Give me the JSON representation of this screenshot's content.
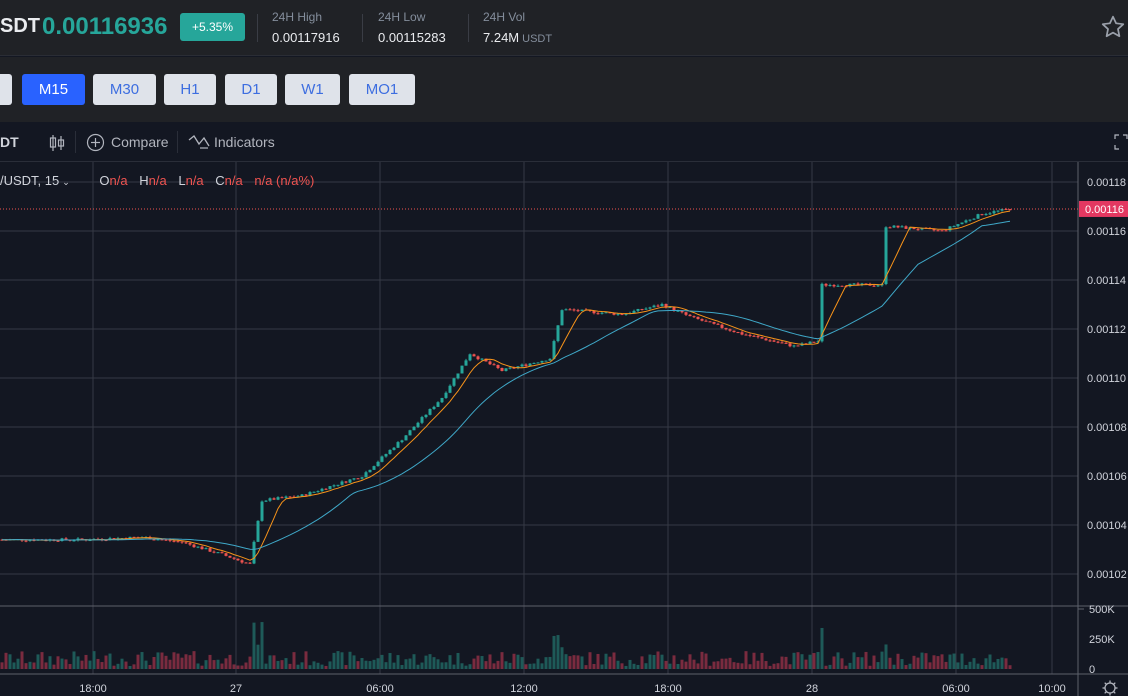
{
  "header": {
    "pair": "SDT",
    "price": "0.00116936",
    "change": "+5.35%",
    "high_label": "24H High",
    "high_value": "0.00117916",
    "low_label": "24H Low",
    "low_value": "0.00115283",
    "vol_label": "24H Vol",
    "vol_value": "7.24M",
    "vol_unit": "USDT"
  },
  "timeframes": [
    {
      "label": "",
      "active": false
    },
    {
      "label": "M15",
      "active": true
    },
    {
      "label": "M30",
      "active": false
    },
    {
      "label": "H1",
      "active": false
    },
    {
      "label": "D1",
      "active": false
    },
    {
      "label": "W1",
      "active": false
    },
    {
      "label": "MO1",
      "active": false
    }
  ],
  "toolbar": {
    "left_text": "DT",
    "compare_label": "Compare",
    "indicators_label": "Indicators"
  },
  "legend": {
    "symbol": "/USDT, 15",
    "o_key": "O",
    "o_val": "n/a",
    "h_key": "H",
    "h_val": "n/a",
    "l_key": "L",
    "l_val": "n/a",
    "c_key": "C",
    "c_val": "n/a",
    "chg_val": "n/a (n/a%)"
  },
  "colors": {
    "up": "#26a69a",
    "down": "#ef5350",
    "ma_fast": "#f7931a",
    "ma_slow": "#3fa8c8",
    "accent": "#2962ff"
  },
  "chart_data": {
    "type": "candlestick",
    "price_ticks": [
      "0.00118",
      "0.00116",
      "0.00114",
      "0.00112",
      "0.00110",
      "0.00108",
      "0.00106",
      "0.00104",
      "0.00102"
    ],
    "last_price_label": "0.00116",
    "volume_ticks": [
      "500K",
      "250K",
      "0"
    ],
    "time_ticks": [
      "18:00",
      "27",
      "06:00",
      "12:00",
      "18:00",
      "28",
      "06:00",
      "10:00"
    ],
    "ylim": [
      0.001015,
      0.00118
    ],
    "trend": [
      [
        0,
        0.001034
      ],
      [
        20,
        0.001034
      ],
      [
        35,
        0.001035
      ],
      [
        45,
        0.001033
      ],
      [
        55,
        0.001028
      ],
      [
        62,
        0.001024
      ],
      [
        65,
        0.00105
      ],
      [
        75,
        0.001052
      ],
      [
        90,
        0.00106
      ],
      [
        100,
        0.001075
      ],
      [
        110,
        0.001092
      ],
      [
        117,
        0.00111
      ],
      [
        125,
        0.001103
      ],
      [
        137,
        0.001108
      ],
      [
        140,
        0.001128
      ],
      [
        155,
        0.001126
      ],
      [
        165,
        0.00113
      ],
      [
        172,
        0.001125
      ],
      [
        185,
        0.001118
      ],
      [
        198,
        0.001113
      ],
      [
        204,
        0.001115
      ],
      [
        205,
        0.001138
      ],
      [
        220,
        0.001138
      ],
      [
        221,
        0.001162
      ],
      [
        235,
        0.00116
      ],
      [
        245,
        0.001167
      ],
      [
        252,
        0.001169
      ]
    ]
  }
}
